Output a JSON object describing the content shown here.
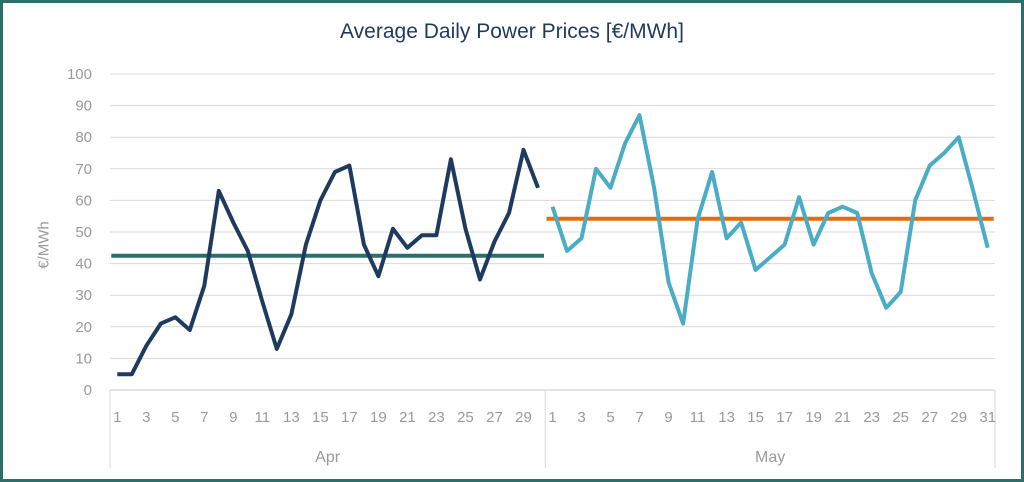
{
  "chart_data": {
    "type": "line",
    "title": "Average Daily Power Prices [€/MWh]",
    "ylabel": "€/MWh",
    "xlabel": "",
    "ylim": [
      0,
      100
    ],
    "yticks": [
      0,
      10,
      20,
      30,
      40,
      50,
      60,
      70,
      80,
      90,
      100
    ],
    "grid": true,
    "legend": "none",
    "groups": [
      {
        "label": "Apr",
        "tick_labels": [
          "1",
          "3",
          "5",
          "7",
          "9",
          "11",
          "13",
          "15",
          "17",
          "19",
          "21",
          "23",
          "25",
          "27",
          "29"
        ],
        "color": "#1f3a5f",
        "average_color": "#2b6f6a",
        "average": 42.5,
        "x": [
          1,
          2,
          3,
          4,
          5,
          6,
          7,
          8,
          9,
          10,
          11,
          12,
          13,
          14,
          15,
          16,
          17,
          18,
          19,
          20,
          21,
          22,
          23,
          24,
          25,
          26,
          27,
          28,
          29,
          30
        ],
        "values": [
          5,
          5,
          14,
          21,
          23,
          19,
          33,
          63,
          53,
          44,
          28,
          13,
          24,
          46,
          60,
          69,
          71,
          46,
          36,
          51,
          45,
          49,
          49,
          73,
          51,
          35,
          47,
          56,
          76,
          64
        ]
      },
      {
        "label": "May",
        "tick_labels": [
          "1",
          "3",
          "5",
          "7",
          "9",
          "11",
          "13",
          "15",
          "17",
          "19",
          "21",
          "23",
          "25",
          "27",
          "29",
          "31"
        ],
        "color": "#4bacc6",
        "average_color": "#e46c0a",
        "average": 54.2,
        "x": [
          1,
          2,
          3,
          4,
          5,
          6,
          7,
          8,
          9,
          10,
          11,
          12,
          13,
          14,
          15,
          16,
          17,
          18,
          19,
          20,
          21,
          22,
          23,
          24,
          25,
          26,
          27,
          28,
          29,
          30,
          31
        ],
        "values": [
          58,
          44,
          48,
          70,
          64,
          78,
          87,
          64,
          34,
          21,
          54,
          69,
          48,
          53,
          38,
          42,
          46,
          61,
          46,
          56,
          58,
          56,
          37,
          26,
          31,
          60,
          71,
          75,
          80,
          63,
          45
        ]
      }
    ]
  }
}
